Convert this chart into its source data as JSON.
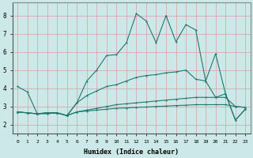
{
  "xlabel": "Humidex (Indice chaleur)",
  "xlim": [
    -0.5,
    23.5
  ],
  "ylim": [
    1.5,
    8.7
  ],
  "xticks": [
    0,
    1,
    2,
    3,
    4,
    5,
    6,
    7,
    8,
    9,
    10,
    11,
    12,
    13,
    14,
    15,
    16,
    17,
    18,
    19,
    20,
    21,
    22,
    23
  ],
  "yticks": [
    2,
    3,
    4,
    5,
    6,
    7,
    8
  ],
  "bg_color": "#cce8e8",
  "line_color": "#1e7a6e",
  "grid_color_major": "#e8b0b0",
  "grid_color_minor": "#e8b0b0",
  "line1_x": [
    0,
    1,
    2,
    3,
    4,
    5,
    6,
    7,
    8,
    9,
    10,
    11,
    12,
    13,
    14,
    15,
    16,
    17,
    18,
    19,
    20,
    21,
    22,
    23
  ],
  "line1_y": [
    4.1,
    3.8,
    2.6,
    2.6,
    2.65,
    2.5,
    3.2,
    4.4,
    5.0,
    5.8,
    5.85,
    6.5,
    8.1,
    7.7,
    6.5,
    8.0,
    6.55,
    7.5,
    7.2,
    4.4,
    5.9,
    3.7,
    2.25,
    2.85
  ],
  "line2_x": [
    0,
    1,
    2,
    3,
    4,
    5,
    6,
    7,
    8,
    9,
    10,
    11,
    12,
    13,
    14,
    15,
    16,
    17,
    18,
    19,
    20,
    21,
    22,
    23
  ],
  "line2_y": [
    2.7,
    2.65,
    2.6,
    2.65,
    2.65,
    2.5,
    3.2,
    3.6,
    3.85,
    4.1,
    4.2,
    4.4,
    4.6,
    4.7,
    4.75,
    4.85,
    4.9,
    5.0,
    4.5,
    4.4,
    3.5,
    3.7,
    2.25,
    2.85
  ],
  "line3_x": [
    0,
    1,
    2,
    3,
    4,
    5,
    6,
    7,
    8,
    9,
    10,
    11,
    12,
    13,
    14,
    15,
    16,
    17,
    18,
    19,
    20,
    21,
    22,
    23
  ],
  "line3_y": [
    2.7,
    2.65,
    2.6,
    2.65,
    2.65,
    2.5,
    2.7,
    2.8,
    2.9,
    3.0,
    3.1,
    3.15,
    3.2,
    3.25,
    3.3,
    3.35,
    3.4,
    3.45,
    3.5,
    3.5,
    3.5,
    3.5,
    3.0,
    2.95
  ],
  "line4_x": [
    0,
    1,
    2,
    3,
    4,
    5,
    6,
    7,
    8,
    9,
    10,
    11,
    12,
    13,
    14,
    15,
    16,
    17,
    18,
    19,
    20,
    21,
    22,
    23
  ],
  "line4_y": [
    2.7,
    2.65,
    2.6,
    2.65,
    2.65,
    2.5,
    2.7,
    2.75,
    2.8,
    2.85,
    2.9,
    2.92,
    2.95,
    2.97,
    3.0,
    3.02,
    3.05,
    3.07,
    3.1,
    3.1,
    3.1,
    3.1,
    3.0,
    2.95
  ]
}
